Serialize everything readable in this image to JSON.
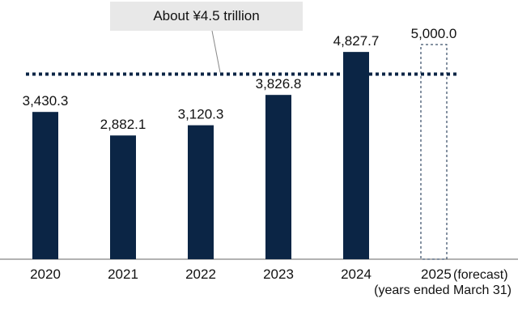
{
  "chart_data": {
    "type": "bar",
    "categories": [
      "2020",
      "2021",
      "2022",
      "2023",
      "2024",
      "2025"
    ],
    "values": [
      3430.3,
      2882.1,
      3120.3,
      3826.8,
      4827.7,
      5000.0
    ],
    "value_labels": [
      "3,430.3",
      "2,882.1",
      "3,120.3",
      "3,826.8",
      "4,827.7",
      "5,000.0"
    ],
    "forecast_suffix": "(forecast)",
    "forecast_index": 5,
    "reference_line": {
      "value": 4500,
      "label": "About ¥4.5 trillion"
    },
    "footnote": "(years ended March 31)",
    "ylim": [
      0,
      5500
    ],
    "bar_color": "#0b2545",
    "forecast_style": "dashed-outline"
  }
}
